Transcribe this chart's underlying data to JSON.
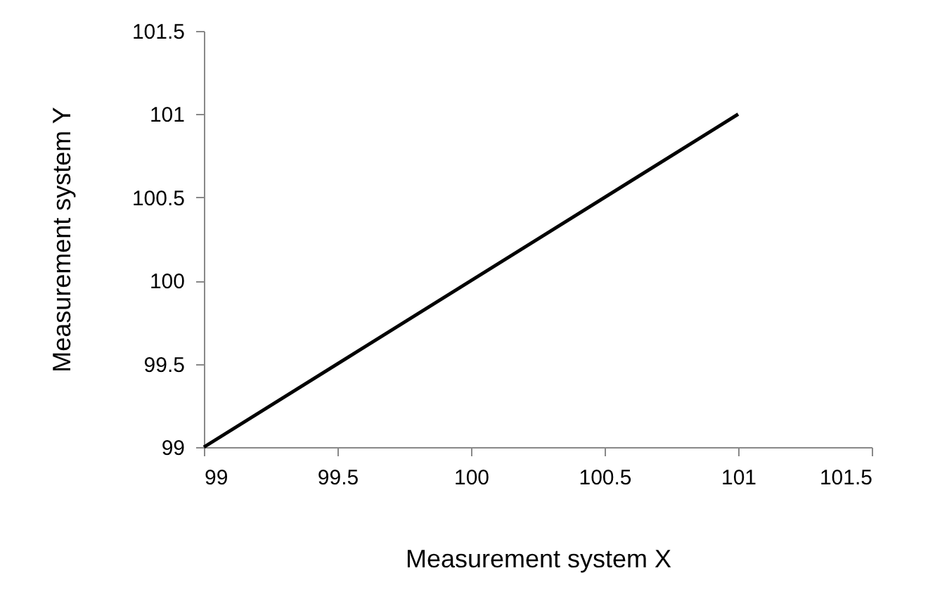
{
  "chart_data": {
    "type": "line",
    "xlabel": "Measurement system X",
    "ylabel": "Measurement system Y",
    "x": [
      99,
      101
    ],
    "series": [
      {
        "color": "#000000",
        "values": [
          99,
          101
        ]
      }
    ],
    "xlim": [
      99,
      101.5
    ],
    "xticks": [
      99,
      99.5,
      100,
      100.5,
      101,
      101.5
    ],
    "ylim": [
      99,
      101.5
    ],
    "yticks": [
      99,
      99.5,
      100,
      100.5,
      101,
      101.5
    ],
    "grid": false,
    "marker": "none",
    "line_style": "solid"
  }
}
